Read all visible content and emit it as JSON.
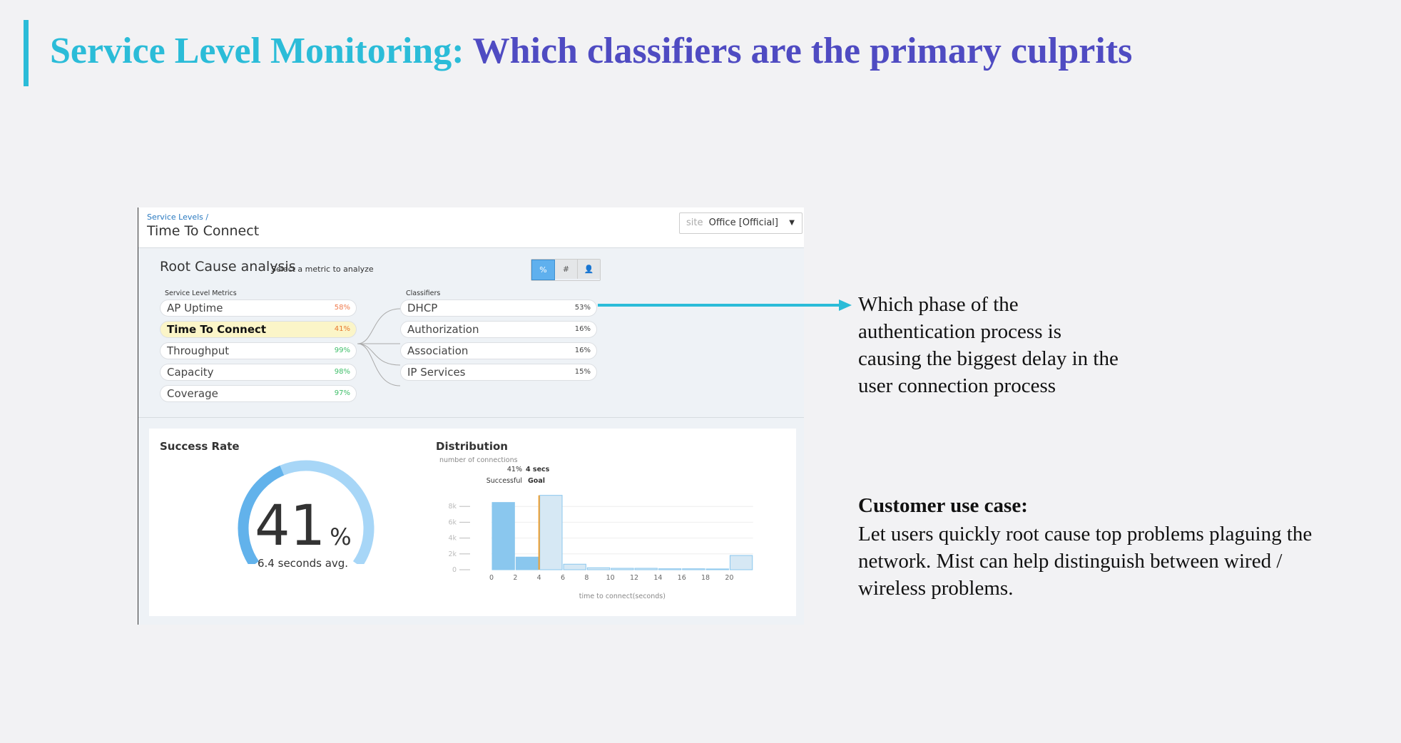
{
  "slide": {
    "title_part1": "Service Level Monitoring:",
    "title_part2": " Which classifiers are the primary culprits",
    "colors": {
      "title_part1": "#2bbcd8",
      "title_part2": "#4f4bc2",
      "accent_bar": "#2bbcd8",
      "arrow": "#2bbcd8"
    },
    "callout": [
      "Which phase of the",
      "authentication process  is",
      "causing the biggest delay in the",
      "user connection process"
    ],
    "use_case_heading": "Customer use case:",
    "use_case_lines": [
      "Let users quickly root cause top problems plaguing the",
      "network. Mist can help distinguish between wired /",
      "wireless problems."
    ]
  },
  "app": {
    "breadcrumb": "Service Levels /",
    "page_title": "Time To Connect",
    "site_label": "site",
    "site_value": "Office [Official]",
    "rca_title": "Root Cause analysis",
    "rca_subtitle": "Select a metric to analyze",
    "toggles": [
      {
        "label": "%",
        "active": true
      },
      {
        "label": "#",
        "active": false
      },
      {
        "icon": "user-icon",
        "active": false
      }
    ],
    "metrics_header": "Service Level Metrics",
    "metrics": [
      {
        "label": "AP Uptime",
        "value": "58%",
        "color": "#f07b4d"
      },
      {
        "label": "Time To Connect",
        "value": "41%",
        "color": "#e8762c",
        "selected": true
      },
      {
        "label": "Throughput",
        "value": "99%",
        "color": "#3fbf6a"
      },
      {
        "label": "Capacity",
        "value": "98%",
        "color": "#3fbf6a"
      },
      {
        "label": "Coverage",
        "value": "97%",
        "color": "#3fbf6a"
      }
    ],
    "classifiers_header": "Classifiers",
    "classifiers": [
      {
        "label": "DHCP",
        "value": "53%"
      },
      {
        "label": "Authorization",
        "value": "16%"
      },
      {
        "label": "Association",
        "value": "16%"
      },
      {
        "label": "IP Services",
        "value": "15%"
      }
    ],
    "success_rate": {
      "title": "Success Rate",
      "value": "41",
      "unit": "%",
      "fraction": 0.41,
      "avg": "6.4 seconds avg."
    },
    "distribution": {
      "title": "Distribution",
      "ylabel": "number of connections",
      "success_pct": "41%",
      "success_label": "Successful",
      "goal_value": "4 secs",
      "goal_label": "Goal"
    }
  },
  "chart_data": {
    "type": "bar",
    "xlabel": "time to connect(seconds)",
    "ylabel": "number of connections",
    "x_ticks": [
      "0",
      "2",
      "4",
      "6",
      "8",
      "10",
      "12",
      "14",
      "16",
      "18",
      "20"
    ],
    "y_ticks": [
      "0",
      "2k",
      "4k",
      "6k",
      "8k"
    ],
    "ylim": [
      0,
      9500
    ],
    "xlim": [
      0,
      22
    ],
    "goal_x": 4,
    "bin_width": 2,
    "bins": [
      0,
      2,
      4,
      6,
      8,
      10,
      12,
      14,
      16,
      18,
      20
    ],
    "values": [
      8500,
      1600,
      9400,
      700,
      250,
      180,
      180,
      120,
      120,
      100,
      1800
    ],
    "colors": {
      "successful": "#8ac7ee",
      "unsuccessful": "#d6e8f4",
      "goal": "#f0a030"
    }
  }
}
